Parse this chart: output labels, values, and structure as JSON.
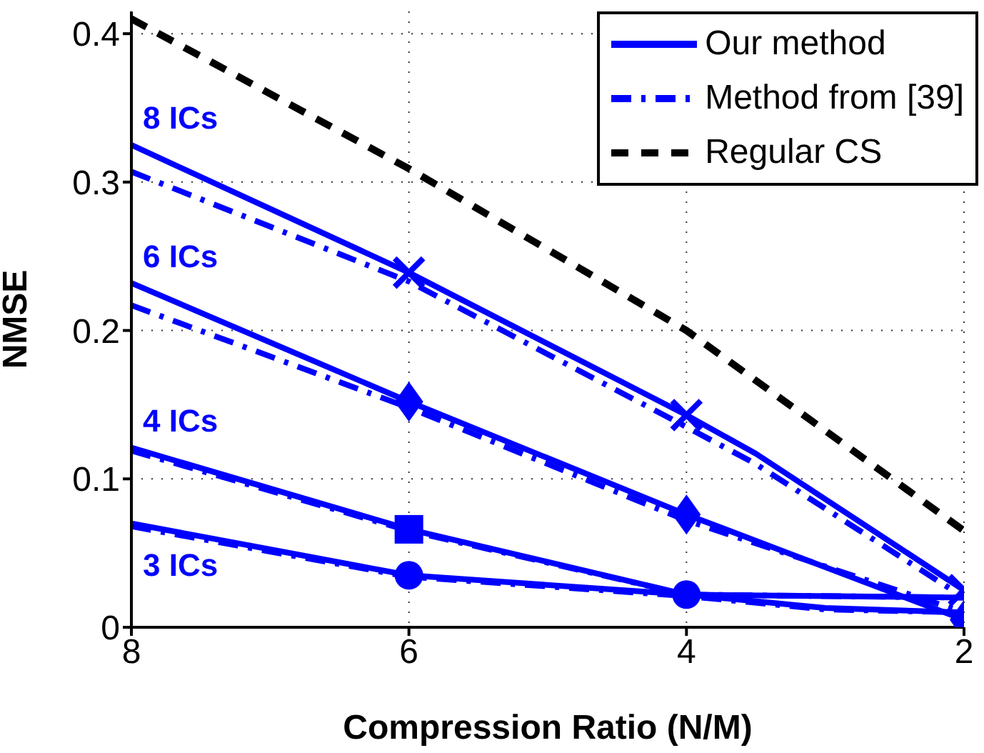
{
  "chart_data": {
    "type": "line",
    "xlabel": "Compression Ratio (N/M)",
    "ylabel": "NMSE",
    "xlim": [
      8,
      2
    ],
    "xticks": [
      8,
      6,
      4,
      2
    ],
    "ylim": [
      0,
      0.415
    ],
    "yticks": [
      0,
      0.1,
      0.2,
      0.3,
      0.4
    ],
    "grid": true,
    "legend": "top right",
    "series": [
      {
        "type": "line",
        "name": "Our method",
        "color": "#0000ff",
        "line_style": "solid",
        "x": [
          8,
          6,
          4,
          3.5,
          2
        ],
        "values": [
          0.325,
          0.239,
          0.143,
          0.117,
          0.025
        ]
      },
      {
        "type": "line",
        "name": "Method from [39]",
        "color": "#0000ff",
        "line_style": "dashdot",
        "x": [
          8,
          6,
          4,
          3.5,
          2
        ],
        "values": [
          0.307,
          0.233,
          0.135,
          0.11,
          0.02
        ]
      },
      {
        "type": "line",
        "name": "Regular CS",
        "color": "#000000",
        "line_style": "dashed",
        "x": [
          8,
          6,
          4,
          2
        ],
        "values": [
          0.41,
          0.309,
          0.2,
          0.065
        ]
      },
      {
        "type": "line",
        "color": "#0000ff",
        "line_style": "solid",
        "x": [
          8,
          6,
          4,
          2
        ],
        "values": [
          0.232,
          0.152,
          0.076,
          0.005
        ]
      },
      {
        "type": "line",
        "color": "#0000ff",
        "line_style": "dashdot",
        "x": [
          8,
          6,
          4,
          2
        ],
        "values": [
          0.217,
          0.148,
          0.072,
          0.01
        ]
      },
      {
        "type": "line",
        "color": "#0000ff",
        "line_style": "solid",
        "x": [
          8,
          6,
          4,
          2
        ],
        "values": [
          0.121,
          0.066,
          0.022,
          0.02
        ]
      },
      {
        "type": "line",
        "color": "#0000ff",
        "line_style": "dashdot",
        "x": [
          8,
          6,
          4,
          2
        ],
        "values": [
          0.119,
          0.065,
          0.022,
          0.02
        ]
      },
      {
        "type": "line",
        "color": "#0000ff",
        "line_style": "solid",
        "x": [
          8,
          6,
          4,
          3,
          2
        ],
        "values": [
          0.07,
          0.035,
          0.022,
          0.013,
          0.01
        ]
      },
      {
        "type": "line",
        "color": "#0000ff",
        "line_style": "dashdot",
        "x": [
          8,
          6,
          4,
          3,
          2
        ],
        "values": [
          0.068,
          0.034,
          0.021,
          0.012,
          0.01
        ]
      },
      {
        "type": "scatter",
        "color": "#0000ff",
        "marker": "cross",
        "x": [
          6,
          4,
          2
        ],
        "values": [
          0.239,
          0.143,
          0.025
        ]
      },
      {
        "type": "scatter",
        "color": "#0000ff",
        "marker": "diamond",
        "x": [
          6,
          4,
          2
        ],
        "values": [
          0.152,
          0.076,
          0.005
        ]
      },
      {
        "type": "scatter",
        "color": "#0000ff",
        "marker": "square",
        "x": [
          6
        ],
        "values": [
          0.066
        ]
      },
      {
        "type": "scatter",
        "color": "#0000ff",
        "marker": "circle",
        "x": [
          6,
          4
        ],
        "values": [
          0.035,
          0.022
        ]
      }
    ],
    "annotations": [
      "8 ICs",
      "6 ICs",
      "4 ICs",
      "3 ICs"
    ]
  }
}
